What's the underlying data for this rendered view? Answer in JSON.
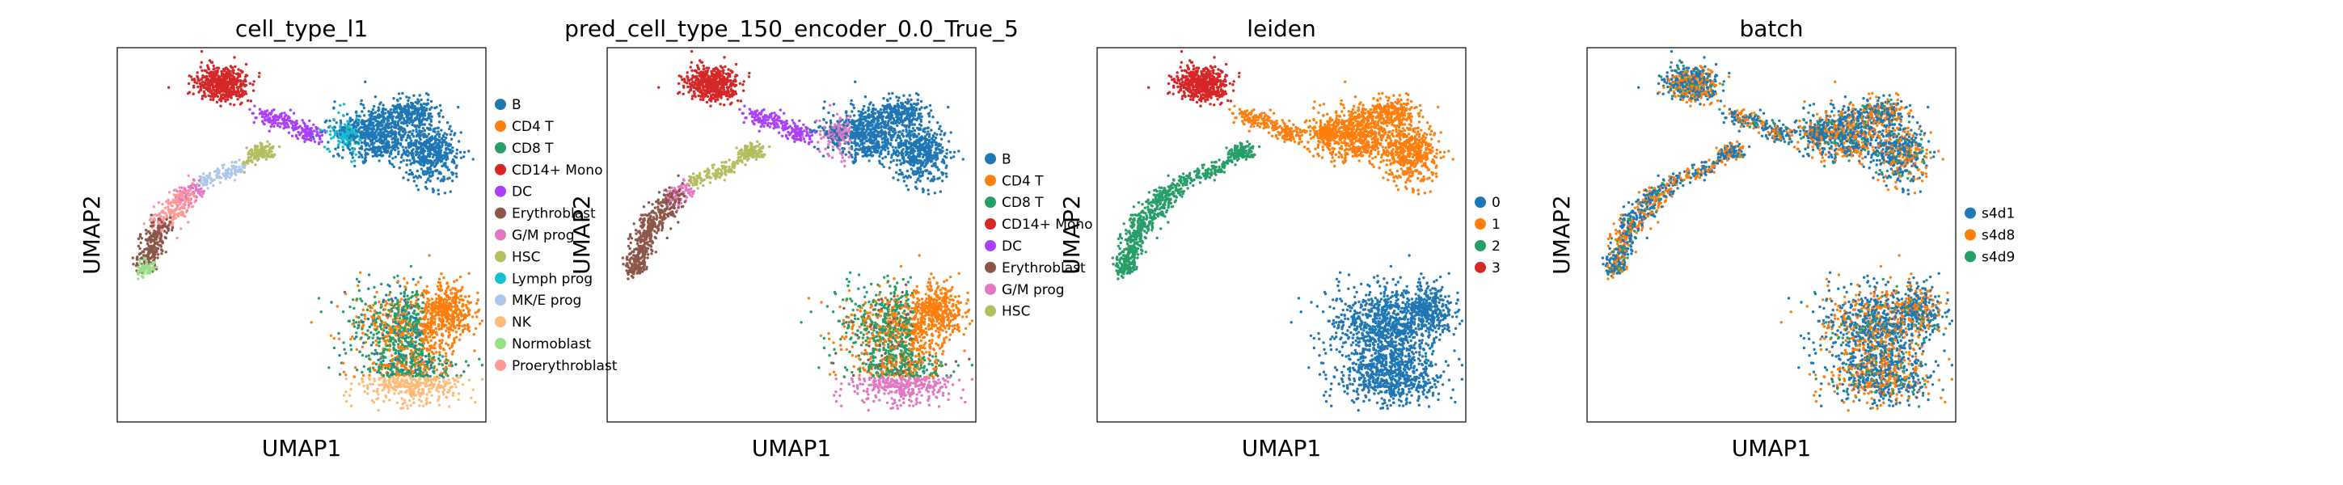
{
  "chart_data": [
    {
      "type": "scatter",
      "title": "cell_type_l1",
      "xlabel": "UMAP1",
      "ylabel": "UMAP2",
      "grid": false,
      "ticks": false,
      "legend_position": "right",
      "categories": [
        "B",
        "CD4 T",
        "CD8 T",
        "CD14+ Mono",
        "DC",
        "Erythroblast",
        "G/M prog",
        "HSC",
        "Lymph prog",
        "MK/E prog",
        "NK",
        "Normoblast",
        "Proerythroblast"
      ],
      "colors": [
        "#1f77b4",
        "#ff7f0e",
        "#279e68",
        "#d62728",
        "#aa40fc",
        "#8c564b",
        "#e377c2",
        "#b5bd61",
        "#17becf",
        "#aec7e8",
        "#ffbb78",
        "#98df8a",
        "#ff9896"
      ]
    },
    {
      "type": "scatter",
      "title": "pred_cell_type_150_encoder_0.0_True_5",
      "xlabel": "UMAP1",
      "ylabel": "UMAP2",
      "grid": false,
      "ticks": false,
      "legend_position": "right",
      "categories": [
        "B",
        "CD4 T",
        "CD8 T",
        "CD14+ Mono",
        "DC",
        "Erythroblast",
        "G/M prog",
        "HSC"
      ],
      "colors": [
        "#1f77b4",
        "#ff7f0e",
        "#279e68",
        "#d62728",
        "#aa40fc",
        "#8c564b",
        "#e377c2",
        "#b5bd61"
      ]
    },
    {
      "type": "scatter",
      "title": "leiden",
      "xlabel": "UMAP1",
      "ylabel": "UMAP2",
      "grid": false,
      "ticks": false,
      "legend_position": "right",
      "categories": [
        "0",
        "1",
        "2",
        "3"
      ],
      "colors": [
        "#1f77b4",
        "#ff7f0e",
        "#279e68",
        "#d62728"
      ]
    },
    {
      "type": "scatter",
      "title": "batch",
      "xlabel": "UMAP1",
      "ylabel": "UMAP2",
      "grid": false,
      "ticks": false,
      "legend_position": "right",
      "categories": [
        "s4d1",
        "s4d8",
        "s4d9"
      ],
      "colors": [
        "#1f77b4",
        "#ff7f0e",
        "#279e68"
      ]
    }
  ]
}
